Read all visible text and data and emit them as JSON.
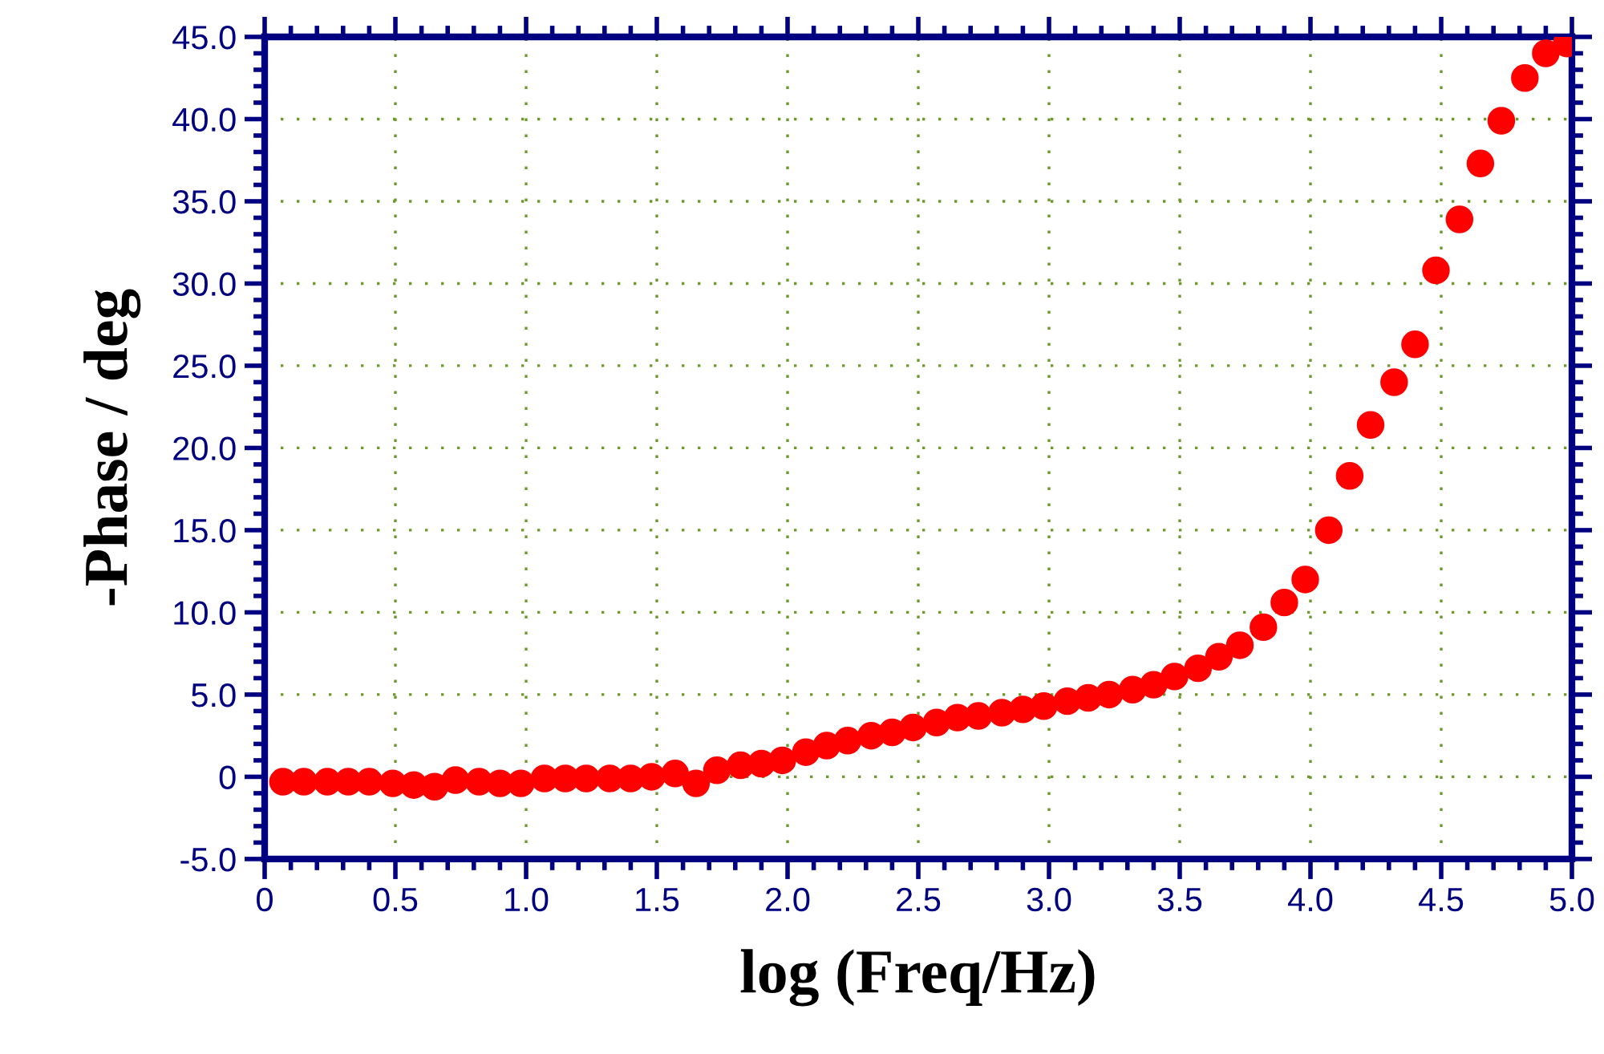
{
  "chart_data": {
    "type": "scatter",
    "xlabel": "log (Freq/Hz)",
    "ylabel": "-Phase / deg",
    "x": [
      0.07,
      0.15,
      0.24,
      0.32,
      0.4,
      0.49,
      0.57,
      0.65,
      0.73,
      0.82,
      0.9,
      0.98,
      1.07,
      1.15,
      1.23,
      1.32,
      1.4,
      1.48,
      1.57,
      1.65,
      1.73,
      1.82,
      1.9,
      1.98,
      2.07,
      2.15,
      2.23,
      2.32,
      2.4,
      2.48,
      2.57,
      2.65,
      2.73,
      2.82,
      2.9,
      2.98,
      3.07,
      3.15,
      3.23,
      3.32,
      3.4,
      3.48,
      3.57,
      3.65,
      3.73,
      3.82,
      3.9,
      3.98,
      4.07,
      4.15,
      4.23,
      4.32,
      4.4,
      4.48,
      4.57,
      4.65,
      4.73,
      4.82,
      4.9,
      4.98
    ],
    "series": [
      {
        "color": "#ff0000",
        "values": [
          -0.3,
          -0.3,
          -0.3,
          -0.3,
          -0.3,
          -0.4,
          -0.5,
          -0.6,
          -0.2,
          -0.3,
          -0.4,
          -0.4,
          -0.1,
          -0.1,
          -0.1,
          -0.1,
          -0.1,
          0.0,
          0.2,
          -0.4,
          0.4,
          0.7,
          0.8,
          1.0,
          1.5,
          1.9,
          2.2,
          2.5,
          2.7,
          3.0,
          3.3,
          3.6,
          3.7,
          3.9,
          4.1,
          4.3,
          4.6,
          4.8,
          5.0,
          5.3,
          5.6,
          6.1,
          6.6,
          7.3,
          8.0,
          9.1,
          10.6,
          12.0,
          15.0,
          18.3,
          21.4,
          24.0,
          26.3,
          30.8,
          33.9,
          37.3,
          39.9,
          42.5,
          44.0,
          44.6
        ]
      }
    ],
    "xlim": [
      0,
      5.0
    ],
    "xticks": [
      0,
      {
        "value": 0.5,
        "label": "0.5"
      },
      {
        "value": 1.0,
        "label": "1.0"
      },
      {
        "value": 1.5,
        "label": "1.5"
      },
      {
        "value": 2.0,
        "label": "2.0"
      },
      {
        "value": 2.5,
        "label": "2.5"
      },
      {
        "value": 3.0,
        "label": "3.0"
      },
      {
        "value": 3.5,
        "label": "3.5"
      },
      {
        "value": 4.0,
        "label": "4.0"
      },
      {
        "value": 4.5,
        "label": "4.5"
      },
      {
        "value": 5.0,
        "label": "5.0"
      }
    ],
    "ylim": [
      -5.0,
      45.0
    ],
    "yticks": [
      {
        "value": -5.0,
        "label": "-5.0"
      },
      0,
      {
        "value": 5.0,
        "label": "5.0"
      },
      {
        "value": 10.0,
        "label": "10.0"
      },
      {
        "value": 15.0,
        "label": "15.0"
      },
      {
        "value": 20.0,
        "label": "20.0"
      },
      {
        "value": 25.0,
        "label": "25.0"
      },
      {
        "value": 30.0,
        "label": "30.0"
      },
      {
        "value": 35.0,
        "label": "35.0"
      },
      {
        "value": 40.0,
        "label": "40.0"
      },
      {
        "value": 45.0,
        "label": "45.0"
      }
    ],
    "grid": true,
    "marker": "circle"
  }
}
